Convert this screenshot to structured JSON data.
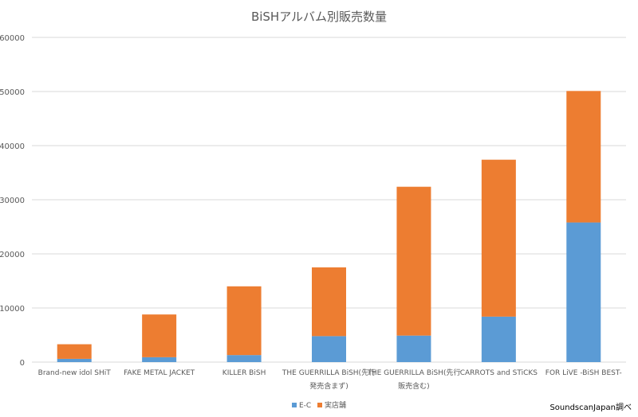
{
  "chart_data": {
    "type": "bar",
    "stacked": true,
    "title": "BiSHアルバム別販売数量",
    "categories": [
      [
        "Brand-new idol SHiT"
      ],
      [
        "FAKE METAL JACKET"
      ],
      [
        "KILLER BiSH"
      ],
      [
        "THE GUERRILLA BiSH(先行",
        "発売含まず)"
      ],
      [
        "THE GUERRILLA BiSH(先行",
        "販売含む)"
      ],
      [
        "CARROTS and STiCKS"
      ],
      [
        "FOR LiVE -BiSH BEST-"
      ]
    ],
    "series": [
      {
        "name": "E-C",
        "color": "#5b9bd5",
        "values": [
          600,
          900,
          1300,
          4800,
          4900,
          8400,
          25800
        ]
      },
      {
        "name": "実店舗",
        "color": "#ed7d31",
        "values": [
          2700,
          7900,
          12700,
          12700,
          27500,
          29000,
          24300
        ]
      }
    ],
    "ylim": [
      0,
      60000
    ],
    "yticks": [
      0,
      10000,
      20000,
      30000,
      40000,
      50000,
      60000
    ],
    "grid": true,
    "legend": "bottom"
  },
  "credit": "SoundscanJapan調べ"
}
